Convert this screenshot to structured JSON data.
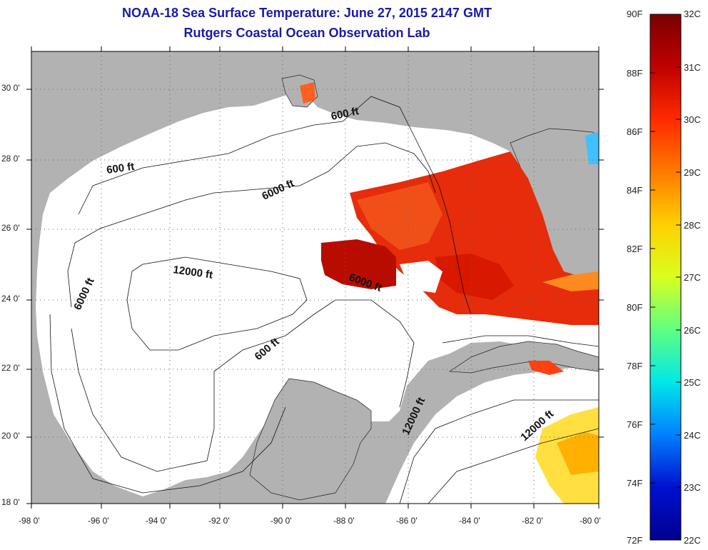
{
  "title": "NOAA-18 Sea Surface Temperature:  June 27, 2015 2147 GMT",
  "subtitle": "Rutgers Coastal Ocean Observation Lab",
  "lat_labels": [
    "30 0'",
    "28 0'",
    "26 0'",
    "24 0'",
    "22 0'",
    "20 0'",
    "18 0'"
  ],
  "lon_labels": [
    "-98 0'",
    "-96 0'",
    "-94 0'",
    "-92 0'",
    "-90 0'",
    "-88 0'",
    "-86 0'",
    "-84 0'",
    "-82 0'",
    "-80 0'"
  ],
  "contour_labels": [
    "600 ft",
    "600 ft",
    "6000 ft",
    "12000 ft",
    "6000 ft",
    "6000 ft",
    "600 ft",
    "12000 ft",
    "12000 ft"
  ],
  "colorbar": {
    "fahrenheit_labels": [
      "90F",
      "88F",
      "86F",
      "84F",
      "82F",
      "80F",
      "78F",
      "76F",
      "74F",
      "72F"
    ],
    "celsius_labels": [
      "32C",
      "31C",
      "30C",
      "29C",
      "28C",
      "27C",
      "26C",
      "25C",
      "24C",
      "23C",
      "22C"
    ],
    "colors": [
      "#7a0000",
      "#c00000",
      "#ff2a00",
      "#ff7a00",
      "#ffd000",
      "#d8ff20",
      "#60ff80",
      "#00e8e8",
      "#0080ff",
      "#0010d0",
      "#000090"
    ]
  },
  "colors": {
    "land": "#b2b2b2",
    "water": "#ffffff",
    "title": "#1a1aa8"
  }
}
